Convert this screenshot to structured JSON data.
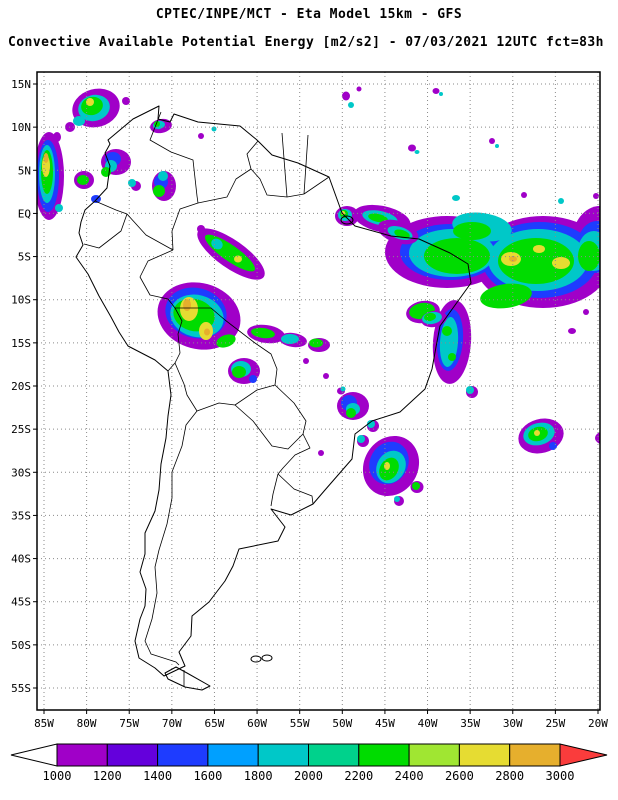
{
  "header": {
    "title_line1": "CPTEC/INPE/MCT -  Eta Model 15km - GFS",
    "title_line2": "Convective Available Potential Energy [m2/s2] - 07/03/2021 12UTC fct=83h"
  },
  "map": {
    "lat_labels": [
      "15N",
      "10N",
      "5N",
      "EQ",
      "5S",
      "10S",
      "15S",
      "20S",
      "25S",
      "30S",
      "35S",
      "40S",
      "45S",
      "50S",
      "55S"
    ],
    "lon_labels": [
      "85W",
      "80W",
      "75W",
      "70W",
      "65W",
      "60W",
      "55W",
      "50W",
      "45W",
      "40W",
      "35W",
      "30W",
      "25W",
      "20W"
    ]
  },
  "colorbar": {
    "tick_labels": [
      "1000",
      "1200",
      "1400",
      "1600",
      "1800",
      "2000",
      "2200",
      "2400",
      "2600",
      "2800",
      "3000"
    ],
    "segment_colors": [
      "#a000c8",
      "#6400dc",
      "#1e3cff",
      "#00a0ff",
      "#00c8c8",
      "#00d28c",
      "#00dc00",
      "#a0e632",
      "#e6dc32",
      "#e6af2d"
    ],
    "left_arrow_color": "#ffffff",
    "right_arrow_color": "#fa3c3c"
  },
  "chart_data": {
    "type": "heatmap",
    "title": "Convective Available Potential Energy [m2/s2]",
    "source": "CPTEC/INPE/MCT",
    "model": "Eta Model 15km - GFS",
    "valid_time": "07/03/2021 12UTC",
    "forecast": "fct=83h",
    "units": "m2/s2",
    "colorbar_values": [
      1000,
      1200,
      1400,
      1600,
      1800,
      2000,
      2200,
      2400,
      2600,
      2800,
      3000
    ],
    "colorbar_colors": [
      "#a000c8",
      "#6400dc",
      "#1e3cff",
      "#00a0ff",
      "#00c8c8",
      "#00d28c",
      "#00dc00",
      "#a0e632",
      "#e6dc32",
      "#e6af2d"
    ],
    "below_min_color": "#ffffff",
    "above_max_color": "#fa3c3c",
    "lat_range": [
      "15N",
      "55S"
    ],
    "lon_range": [
      "85W",
      "20W"
    ],
    "grid": true,
    "legend_position": "bottom"
  }
}
